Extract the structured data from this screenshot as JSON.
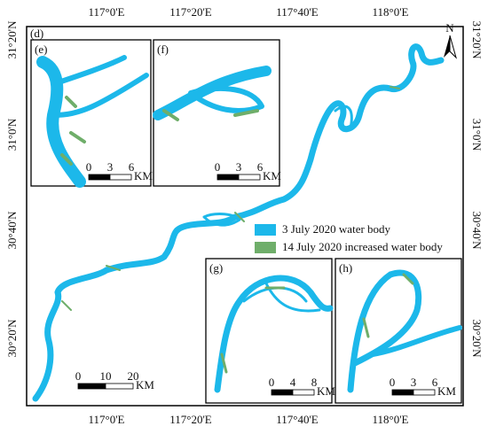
{
  "map": {
    "top_labels": [
      "117°0'E",
      "117°20'E",
      "117°40'E",
      "118°0'E"
    ],
    "bottom_labels": [
      "117°0'E",
      "117°20'E",
      "117°40'E",
      "118°0'E"
    ],
    "left_labels": [
      "31°20'N",
      "31°0'N",
      "30°40'N",
      "30°20'N"
    ],
    "right_labels": [
      "31°20'N",
      "31°0'N",
      "30°40'N",
      "30°20'N"
    ],
    "main_label": "(d)",
    "north": "N",
    "main_scale": {
      "ticks": [
        0,
        10,
        20
      ],
      "unit": "KM"
    },
    "panels": [
      {
        "label": "(e)",
        "ticks": [
          0,
          3,
          6
        ],
        "unit": "KM"
      },
      {
        "label": "(f)",
        "ticks": [
          0,
          3,
          6
        ],
        "unit": "KM"
      },
      {
        "label": "(g)",
        "ticks": [
          0,
          4,
          8
        ],
        "unit": "KM"
      },
      {
        "label": "(h)",
        "ticks": [
          0,
          3,
          6
        ],
        "unit": "KM"
      }
    ],
    "legend": [
      {
        "label": "3 July 2020 water body",
        "color": "#1cb8ea"
      },
      {
        "label": "14 July 2020 increased water body",
        "color": "#6fae6a"
      }
    ]
  }
}
